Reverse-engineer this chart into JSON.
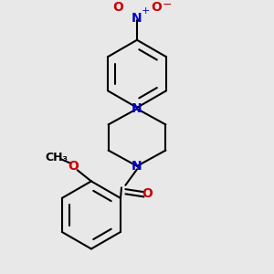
{
  "bg_color": "#e8e8e8",
  "bond_color": "#000000",
  "nitrogen_color": "#0000cc",
  "oxygen_color": "#cc0000",
  "line_width": 1.5,
  "figsize": [
    3.0,
    3.0
  ],
  "dpi": 100,
  "xlim": [
    -2.5,
    2.5
  ],
  "ylim": [
    -3.2,
    3.2
  ]
}
